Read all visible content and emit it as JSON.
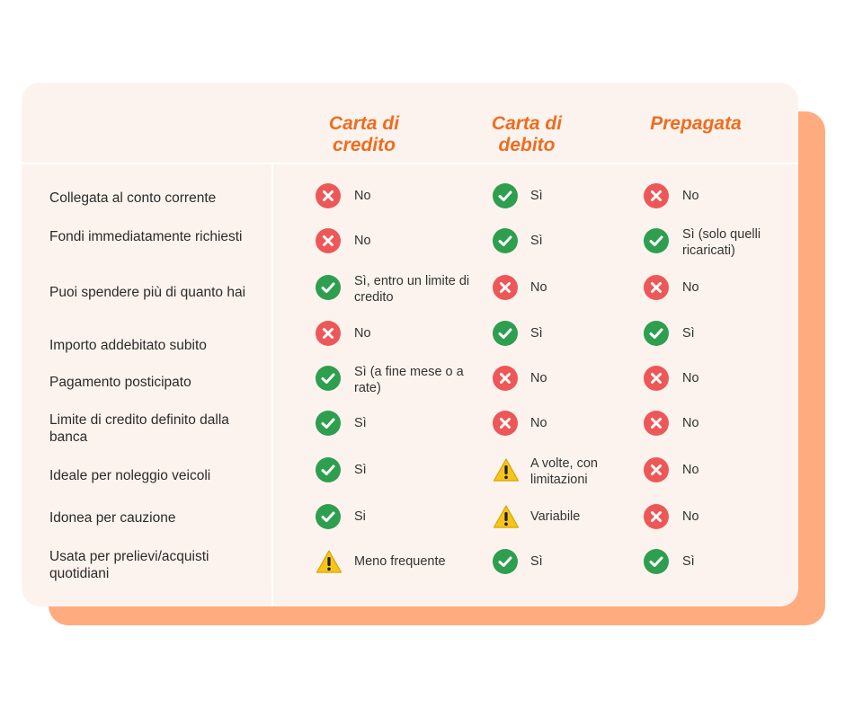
{
  "columns": [
    "Carta di credito",
    "Carta di debito",
    "Prepagata"
  ],
  "colors": {
    "accent": "#ef6c1e",
    "check": "#2e9e4f",
    "cross": "#ee5757",
    "warning": "#f6c51a",
    "card_bg": "#fdf3ee",
    "shadow": "#ffab80"
  },
  "rows": [
    {
      "label": "Collegata al conto corrente",
      "cells": [
        {
          "icon": "cross-icon",
          "text": "No"
        },
        {
          "icon": "check-icon",
          "text": "Sì"
        },
        {
          "icon": "cross-icon",
          "text": "No"
        }
      ]
    },
    {
      "label": "Fondi immediatamente richiesti",
      "cells": [
        {
          "icon": "cross-icon",
          "text": "No"
        },
        {
          "icon": "check-icon",
          "text": "Sì"
        },
        {
          "icon": "check-icon",
          "text": "Sì (solo quelli ricaricati)"
        }
      ]
    },
    {
      "label": "Puoi spendere più di quanto hai",
      "cells": [
        {
          "icon": "check-icon",
          "text": "Sì, entro un limite di credito"
        },
        {
          "icon": "cross-icon",
          "text": "No"
        },
        {
          "icon": "cross-icon",
          "text": "No"
        }
      ]
    },
    {
      "label": "Importo addebitato subito",
      "cells": [
        {
          "icon": "cross-icon",
          "text": "No"
        },
        {
          "icon": "check-icon",
          "text": "Sì"
        },
        {
          "icon": "check-icon",
          "text": "Sì"
        }
      ]
    },
    {
      "label": "Pagamento posticipato",
      "cells": [
        {
          "icon": "check-icon",
          "text": "Sì (a fine mese o a rate)"
        },
        {
          "icon": "cross-icon",
          "text": "No"
        },
        {
          "icon": "cross-icon",
          "text": "No"
        }
      ]
    },
    {
      "label": "Limite di credito definito dalla banca",
      "cells": [
        {
          "icon": "check-icon",
          "text": "Sì"
        },
        {
          "icon": "cross-icon",
          "text": "No"
        },
        {
          "icon": "cross-icon",
          "text": "No"
        }
      ]
    },
    {
      "label": "Ideale per noleggio veicoli",
      "cells": [
        {
          "icon": "check-icon",
          "text": "Sì"
        },
        {
          "icon": "warning-icon",
          "text": "A volte, con limitazioni"
        },
        {
          "icon": "cross-icon",
          "text": "No"
        }
      ]
    },
    {
      "label": "Idonea per cauzione",
      "cells": [
        {
          "icon": "check-icon",
          "text": "Si"
        },
        {
          "icon": "warning-icon",
          "text": "Variabile"
        },
        {
          "icon": "cross-icon",
          "text": "No"
        }
      ]
    },
    {
      "label": "Usata per prelievi/acquisti quotidiani",
      "cells": [
        {
          "icon": "warning-icon",
          "text": "Meno frequente"
        },
        {
          "icon": "check-icon",
          "text": "Sì"
        },
        {
          "icon": "check-icon",
          "text": "Sì"
        }
      ]
    }
  ]
}
